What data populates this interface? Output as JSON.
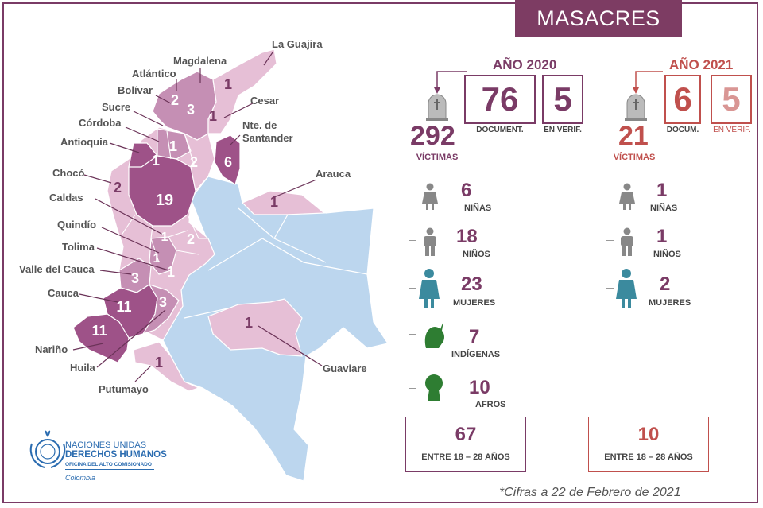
{
  "title": "MASACRES",
  "colors": {
    "accent_2020": "#7a3b66",
    "accent_2021": "#c0504d",
    "map_light_blue": "#bcd6ee",
    "map_light_pink": "#e6bfd6",
    "map_mid_pink": "#c58fb4",
    "map_dark": "#9e5288"
  },
  "map": {
    "departments": [
      {
        "name": "La Guajira",
        "count": "1"
      },
      {
        "name": "Magdalena",
        "count": "3"
      },
      {
        "name": "Atlántico",
        "count": "2"
      },
      {
        "name": "Bolívar",
        "count": "2"
      },
      {
        "name": "Cesar",
        "count": "1"
      },
      {
        "name": "Sucre",
        "count": "1"
      },
      {
        "name": "Córdoba",
        "count": "1"
      },
      {
        "name": "Nte. de Santander",
        "count": "6"
      },
      {
        "name": "Antioquia",
        "count": "19"
      },
      {
        "name": "Arauca",
        "count": "1"
      },
      {
        "name": "Chocó",
        "count": "2"
      },
      {
        "name": "Caldas",
        "count": "1"
      },
      {
        "name": "Quindío",
        "count": "1"
      },
      {
        "name": "Tolima",
        "count": "1"
      },
      {
        "name": "Valle del Cauca",
        "count": "3"
      },
      {
        "name": "Cauca",
        "count": "11"
      },
      {
        "name": "Nariño",
        "count": "11"
      },
      {
        "name": "Huila",
        "count": "3"
      },
      {
        "name": "Putumayo",
        "count": "1"
      },
      {
        "name": "Guaviare",
        "count": "1"
      }
    ],
    "extra_counts": [
      "3",
      "2",
      "2"
    ]
  },
  "y2020": {
    "year_label": "AÑO 2020",
    "documented": "76",
    "documented_label": "DOCUMENT.",
    "verifying": "5",
    "verifying_label": "EN VERIF.",
    "victims": "292",
    "victims_label": "VÍCTIMAS",
    "stats": [
      {
        "icon": "girl-icon",
        "value": "6",
        "label": "NIÑAS"
      },
      {
        "icon": "boy-icon",
        "value": "18",
        "label": "NIÑOS"
      },
      {
        "icon": "woman-icon",
        "value": "23",
        "label": "MUJERES"
      },
      {
        "icon": "indigenous-icon",
        "value": "7",
        "label": "INDÍGENAS"
      },
      {
        "icon": "afro-icon",
        "value": "10",
        "label": "AFROS"
      }
    ],
    "age_value": "67",
    "age_label": "ENTRE  18 – 28 AÑOS"
  },
  "y2021": {
    "year_label": "AÑO 2021",
    "documented": "6",
    "documented_label": "DOCUM.",
    "verifying": "5",
    "verifying_label": "EN VERIF.",
    "victims": "21",
    "victims_label": "VÍCTIMAS",
    "stats": [
      {
        "icon": "girl-icon",
        "value": "1",
        "label": "NIÑAS"
      },
      {
        "icon": "boy-icon",
        "value": "1",
        "label": "NIÑOS"
      },
      {
        "icon": "woman-icon",
        "value": "2",
        "label": "MUJERES"
      }
    ],
    "age_value": "10",
    "age_label": "ENTRE  18 – 28 AÑOS"
  },
  "logo": {
    "line1": "NACIONES UNIDAS",
    "line2": "DERECHOS HUMANOS",
    "line3": "OFICINA DEL ALTO COMISIONADO",
    "line4": "Colombia"
  },
  "footnote": "*Cifras a 22 de Febrero de 2021"
}
